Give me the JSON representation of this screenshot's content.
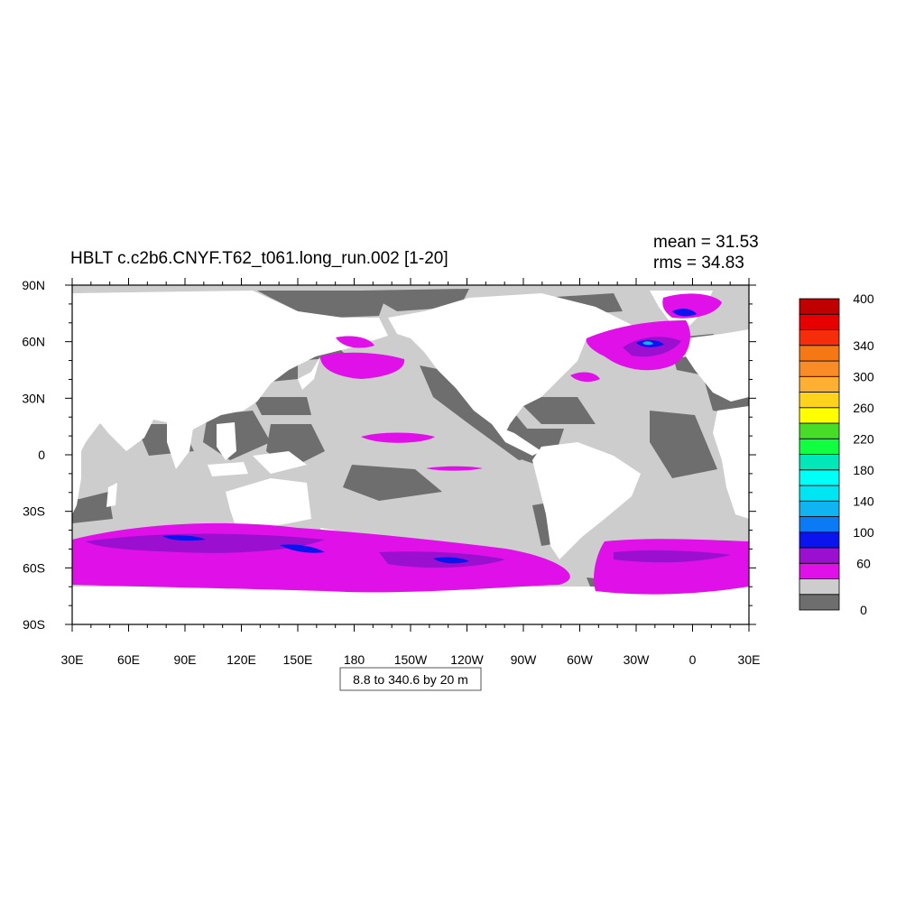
{
  "title": "HBLT c.c2b6.CNYF.T62_t061.long_run.002 [1-20]",
  "stats": {
    "mean": "mean = 31.53",
    "rms": "rms = 34.83"
  },
  "contour_info": "8.8 to 340.6 by 20 m",
  "colors": {
    "land": "#ffffff",
    "band_0_20": "#6e6e6e",
    "band_20_40": "#cdcdcd",
    "band_40_60": "#e010e8",
    "band_60_80": "#9b10d0",
    "band_80_100": "#0a14ee",
    "band_100_120": "#0a7bf5",
    "band_120_140": "#0fb4f0",
    "band_140_160": "#00e5f2",
    "band_160_180": "#00fff6",
    "band_180_200": "#00e8b8",
    "band_200_220": "#10ff40",
    "band_220_240": "#46dc28",
    "band_240_260": "#ffff00",
    "band_260_280": "#ffd21e",
    "band_280_300": "#ffaf32",
    "band_300_320": "#fa8c28",
    "band_320_340": "#f57814",
    "band_340_360": "#f52d0a",
    "band_360_380": "#e60000",
    "band_380_400": "#c00000"
  },
  "chart_data": {
    "type": "heatmap",
    "projection": "cylindrical-equidistant",
    "lon_range": [
      30,
      390
    ],
    "lat_range": [
      -90,
      90
    ],
    "x_ticks": [
      "30E",
      "60E",
      "90E",
      "120E",
      "150E",
      "180",
      "150W",
      "120W",
      "90W",
      "60W",
      "30W",
      "0",
      "30E"
    ],
    "x_tick_lons": [
      30,
      60,
      90,
      120,
      150,
      180,
      210,
      240,
      270,
      300,
      330,
      360,
      390
    ],
    "y_ticks": [
      "90N",
      "60N",
      "30N",
      "0",
      "30S",
      "60S",
      "90S"
    ],
    "y_tick_lats": [
      90,
      60,
      30,
      0,
      -30,
      -60,
      -90
    ],
    "colorbar": {
      "levels": [
        0,
        20,
        40,
        60,
        80,
        100,
        120,
        140,
        160,
        180,
        200,
        220,
        240,
        260,
        280,
        300,
        320,
        340,
        360,
        380,
        400
      ],
      "labels": [
        "0",
        "60",
        "100",
        "140",
        "180",
        "220",
        "260",
        "300",
        "340",
        "400"
      ]
    }
  }
}
